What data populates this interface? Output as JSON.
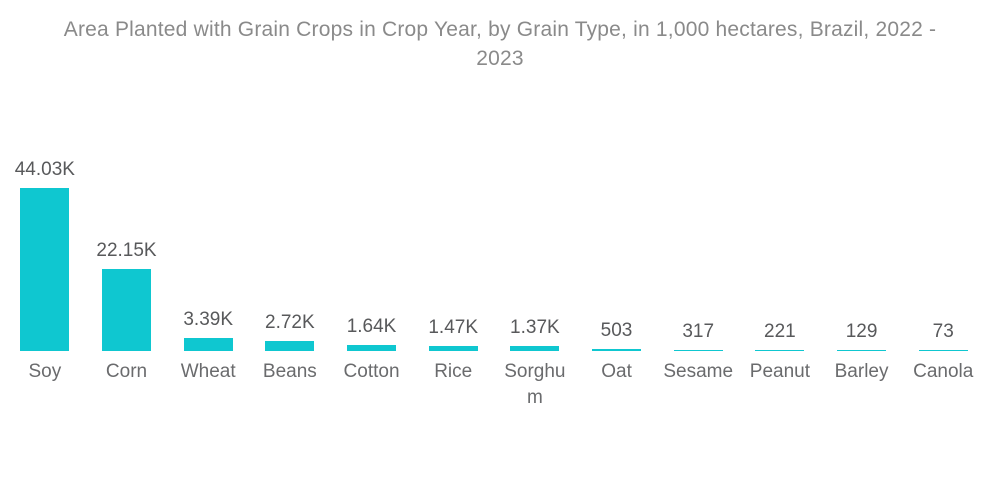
{
  "page": {
    "background": "#ffffff"
  },
  "chart_data": {
    "type": "bar",
    "title": "Area Planted with Grain Crops in Crop Year, by Grain Type, in 1,000 hectares, Brazil, 2022 - 2023",
    "title_lines": [
      "Area Planted with Grain Crops in Crop Year, by Grain Type, in 1,000 hectares, Brazil, 2022 -",
      "2023"
    ],
    "categories": [
      "Soy",
      "Corn",
      "Wheat",
      "Beans",
      "Cotton",
      "Rice",
      "Sorghum",
      "Oat",
      "Sesame",
      "Peanut",
      "Barley",
      "Canola"
    ],
    "values": [
      44030,
      22150,
      3390,
      2720,
      1640,
      1470,
      1370,
      503,
      317,
      221,
      129,
      73
    ],
    "value_labels": [
      "44.03K",
      "22.15K",
      "3.39K",
      "2.72K",
      "1.64K",
      "1.47K",
      "1.37K",
      "503",
      "317",
      "221",
      "129",
      "73"
    ],
    "ylim": [
      0,
      44030
    ],
    "xlabel": "",
    "ylabel": "",
    "grid": false,
    "legend": false,
    "bar_color": "#0fc7d0",
    "title_color": "#8a8a8a",
    "value_label_color": "#58595b",
    "category_label_color": "#6a6b6d"
  }
}
